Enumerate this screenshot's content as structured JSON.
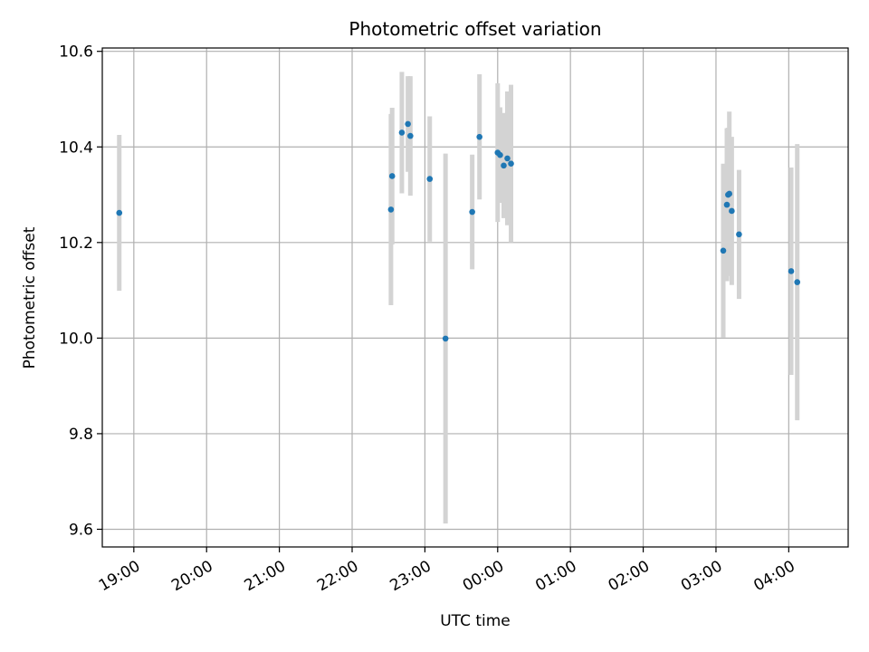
{
  "chart_data": {
    "type": "scatter",
    "title": "Photometric offset variation",
    "xlabel": "UTC time",
    "ylabel": "Photometric offset",
    "x_tick_labels": [
      "19:00",
      "20:00",
      "21:00",
      "22:00",
      "23:00",
      "00:00",
      "01:00",
      "02:00",
      "03:00",
      "04:00"
    ],
    "y_tick_labels": [
      "9.6",
      "9.8",
      "10.0",
      "10.2",
      "10.4",
      "10.6"
    ],
    "x_ticks": [
      "19:00",
      "20:00",
      "21:00",
      "22:00",
      "23:00",
      "00:00",
      "01:00",
      "02:00",
      "03:00",
      "04:00"
    ],
    "y_ticks": [
      9.6,
      9.8,
      10.0,
      10.2,
      10.4,
      10.6
    ],
    "xlim": [
      "18:34",
      "04:49"
    ],
    "ylim": [
      9.563,
      10.607
    ],
    "grid": true,
    "marker_color": "#1f77b4",
    "errorbar_color": "#d3d3d3",
    "points": [
      {
        "x": "18:48",
        "y": 10.262,
        "err": 0.163
      },
      {
        "x": "22:32",
        "y": 10.269,
        "err": 0.2
      },
      {
        "x": "22:33",
        "y": 10.339,
        "err": 0.143
      },
      {
        "x": "22:41",
        "y": 10.43,
        "err": 0.127
      },
      {
        "x": "22:46",
        "y": 10.448,
        "err": 0.1
      },
      {
        "x": "22:48",
        "y": 10.423,
        "err": 0.125
      },
      {
        "x": "23:04",
        "y": 10.333,
        "err": 0.131
      },
      {
        "x": "23:17",
        "y": 9.999,
        "err": 0.387
      },
      {
        "x": "23:39",
        "y": 10.264,
        "err": 0.12
      },
      {
        "x": "23:45",
        "y": 10.421,
        "err": 0.131
      },
      {
        "x": "00:00",
        "y": 10.388,
        "err": 0.145
      },
      {
        "x": "00:02",
        "y": 10.383,
        "err": 0.1
      },
      {
        "x": "00:05",
        "y": 10.361,
        "err": 0.11
      },
      {
        "x": "00:08",
        "y": 10.376,
        "err": 0.14
      },
      {
        "x": "00:11",
        "y": 10.365,
        "err": 0.165
      },
      {
        "x": "03:06",
        "y": 10.183,
        "err": 0.182
      },
      {
        "x": "03:09",
        "y": 10.279,
        "err": 0.16
      },
      {
        "x": "03:10",
        "y": 10.3,
        "err": 0.14
      },
      {
        "x": "03:11",
        "y": 10.302,
        "err": 0.172
      },
      {
        "x": "03:13",
        "y": 10.266,
        "err": 0.155
      },
      {
        "x": "03:19",
        "y": 10.217,
        "err": 0.135
      },
      {
        "x": "04:02",
        "y": 10.14,
        "err": 0.217
      },
      {
        "x": "04:07",
        "y": 10.117,
        "err": 0.289
      }
    ]
  }
}
